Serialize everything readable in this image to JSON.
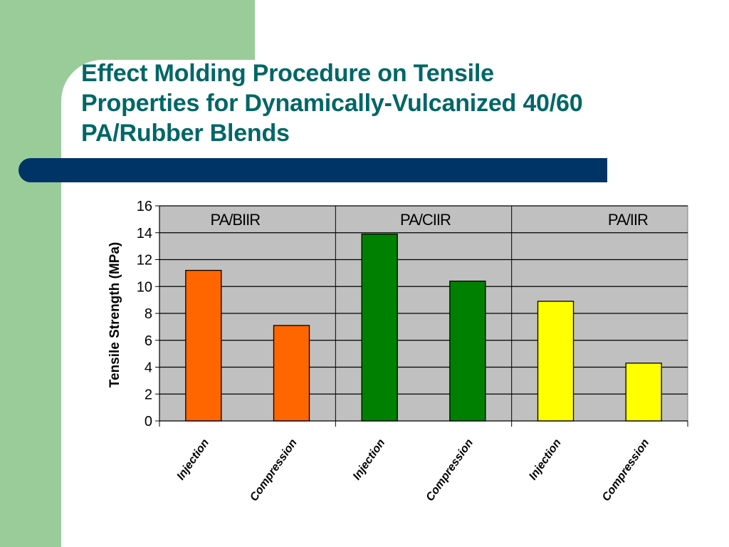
{
  "slide": {
    "title_lines": [
      "Effect Molding Procedure on Tensile",
      "Properties for Dynamically-Vulcanized 40/60",
      "PA/Rubber Blends"
    ],
    "colors": {
      "title": "#006666",
      "sidebar": "#99cc99",
      "bar": "#003366"
    }
  },
  "chart_data": {
    "type": "bar",
    "title": "",
    "xlabel": "",
    "ylabel": "Tensile Strength (MPa)",
    "ylim": [
      0,
      16
    ],
    "yticks": [
      0,
      2,
      4,
      6,
      8,
      10,
      12,
      14,
      16
    ],
    "grid": true,
    "plot_background": "#c0c0c0",
    "groups": [
      {
        "name": "PA/BIIR",
        "color": "#ff6600"
      },
      {
        "name": "PA/CIIR",
        "color": "#008000"
      },
      {
        "name": "PA/IIR",
        "color": "#ffff00"
      }
    ],
    "bars": [
      {
        "group": "PA/BIIR",
        "category": "Injection",
        "value": 11.2
      },
      {
        "group": "PA/BIIR",
        "category": "Compression",
        "value": 7.1
      },
      {
        "group": "PA/CIIR",
        "category": "Injection",
        "value": 13.9
      },
      {
        "group": "PA/CIIR",
        "category": "Compression",
        "value": 10.4
      },
      {
        "group": "PA/IIR",
        "category": "Injection",
        "value": 8.9
      },
      {
        "group": "PA/IIR",
        "category": "Compression",
        "value": 4.3
      }
    ]
  }
}
